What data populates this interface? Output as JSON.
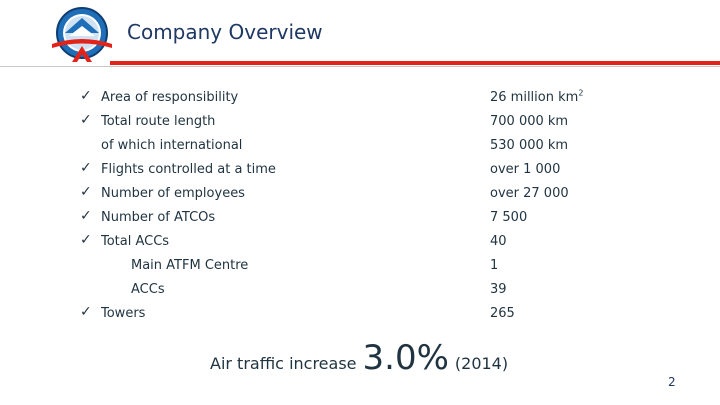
{
  "header": {
    "title": "Company Overview"
  },
  "rows": [
    {
      "label": "Area of responsibility",
      "value": "26 million km",
      "sup": "2"
    },
    {
      "label": "Total route length",
      "value": "700 000 km"
    },
    {
      "label": "of which international",
      "value": "530 000 km"
    },
    {
      "label": "Flights controlled at a time",
      "value": "over 1 000"
    },
    {
      "label": "Number of employees",
      "value": "over 27 000"
    },
    {
      "label": "Number of ATCOs",
      "value": "7 500"
    },
    {
      "label": "Total ACCs",
      "value": "40"
    },
    {
      "label": "Main ATFM Centre",
      "value": "1"
    },
    {
      "label": "ACCs",
      "value": "39"
    },
    {
      "label": "Towers",
      "value": "265"
    }
  ],
  "summary": {
    "prefix": "Air traffic increase",
    "value": "3.0%",
    "suffix": "(2014)"
  },
  "footer": {
    "page_number": "2"
  },
  "colors": {
    "accent_red": "#e2231a",
    "title_blue": "#1f3864",
    "text": "#1f3340"
  },
  "icons": {
    "bullet": "check-icon",
    "logo": "company-logo"
  }
}
